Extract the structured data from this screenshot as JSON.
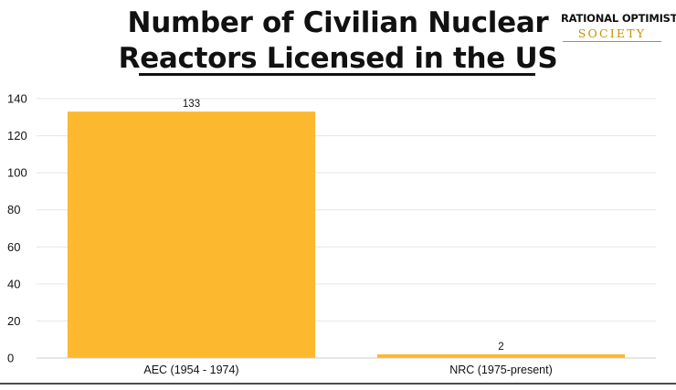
{
  "chart_data": {
    "type": "bar",
    "title_lines": [
      "Number of Civilian Nuclear",
      "Reactors Licensed in the US"
    ],
    "categories": [
      "AEC (1954 - 1974)",
      "NRC (1975-present)"
    ],
    "values": [
      133,
      2
    ],
    "data_labels": [
      "133",
      "2"
    ],
    "xlabel": "",
    "ylabel": "",
    "ylim": [
      0,
      140
    ],
    "yticks": [
      0,
      20,
      40,
      60,
      80,
      100,
      120,
      140
    ],
    "grid": true,
    "legend": "none",
    "bar_color": "#fcb82e",
    "grid_color": "#e6e6e6"
  },
  "logo": {
    "line1": "RATIONAL OPTIMIST",
    "line2": "SOCIETY",
    "accent_color": "#c98f00"
  }
}
